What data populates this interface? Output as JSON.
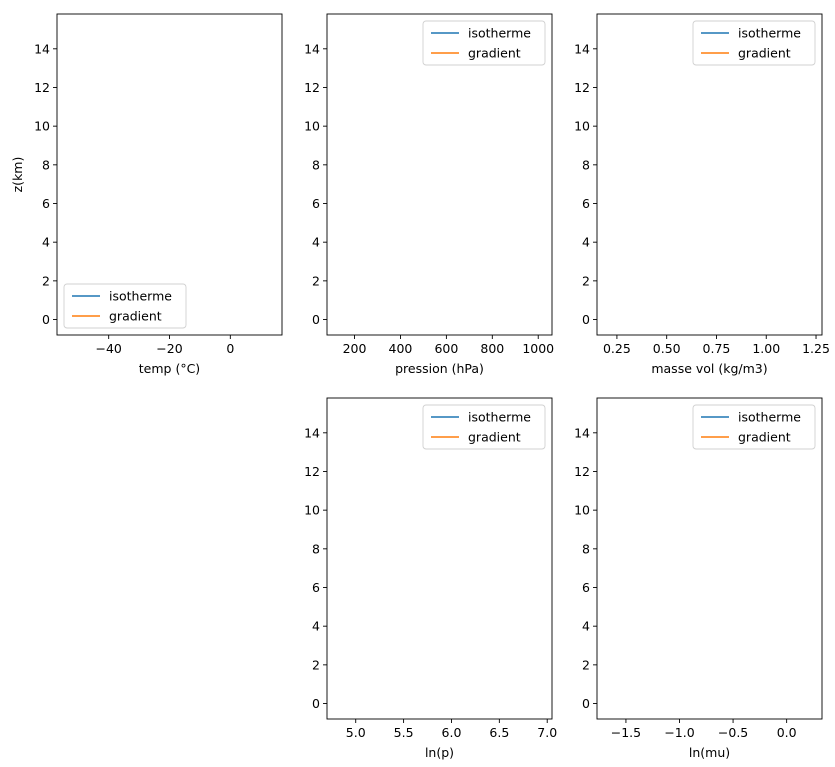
{
  "chart_data": [
    {
      "type": "line",
      "xlabel": "temp (°C)",
      "ylabel": "z(km)",
      "xlim": [
        -57,
        17
      ],
      "ylim": [
        -0.8,
        15.8
      ],
      "xticks": [
        -40,
        -20,
        0
      ],
      "xtick_labels": [
        "−40",
        "−20",
        "0"
      ],
      "yticks": [
        0,
        2,
        4,
        6,
        8,
        10,
        12,
        14
      ],
      "ytick_labels": [
        "0",
        "2",
        "4",
        "6",
        "8",
        "10",
        "12",
        "14"
      ],
      "legend": {
        "location": "lower-left",
        "entries": [
          "isotherme",
          "gradient"
        ]
      },
      "series": [
        {
          "name": "isotherme",
          "color": "#1f77b4",
          "x": [],
          "y": []
        },
        {
          "name": "gradient",
          "color": "#ff7f0e",
          "x": [],
          "y": []
        }
      ]
    },
    {
      "type": "line",
      "xlabel": "pression (hPa)",
      "ylabel": "",
      "xlim": [
        80,
        1060
      ],
      "ylim": [
        -0.8,
        15.8
      ],
      "xticks": [
        200,
        400,
        600,
        800,
        1000
      ],
      "xtick_labels": [
        "200",
        "400",
        "600",
        "800",
        "1000"
      ],
      "yticks": [
        0,
        2,
        4,
        6,
        8,
        10,
        12,
        14
      ],
      "ytick_labels": [
        "0",
        "2",
        "4",
        "6",
        "8",
        "10",
        "12",
        "14"
      ],
      "legend": {
        "location": "upper-right",
        "entries": [
          "isotherme",
          "gradient"
        ]
      },
      "series": [
        {
          "name": "isotherme",
          "color": "#1f77b4",
          "x": [],
          "y": []
        },
        {
          "name": "gradient",
          "color": "#ff7f0e",
          "x": [],
          "y": []
        }
      ]
    },
    {
      "type": "line",
      "xlabel": "masse vol (kg/m3)",
      "ylabel": "",
      "xlim": [
        0.15,
        1.28
      ],
      "ylim": [
        -0.8,
        15.8
      ],
      "xticks": [
        0.25,
        0.5,
        0.75,
        1.0,
        1.25
      ],
      "xtick_labels": [
        "0.25",
        "0.50",
        "0.75",
        "1.00",
        "1.25"
      ],
      "yticks": [
        0,
        2,
        4,
        6,
        8,
        10,
        12,
        14
      ],
      "ytick_labels": [
        "0",
        "2",
        "4",
        "6",
        "8",
        "10",
        "12",
        "14"
      ],
      "legend": {
        "location": "upper-right",
        "entries": [
          "isotherme",
          "gradient"
        ]
      },
      "series": [
        {
          "name": "isotherme",
          "color": "#1f77b4",
          "x": [],
          "y": []
        },
        {
          "name": "gradient",
          "color": "#ff7f0e",
          "x": [],
          "y": []
        }
      ]
    },
    {
      "type": "line",
      "xlabel": "ln(p)",
      "ylabel": "",
      "xlim": [
        4.7,
        7.05
      ],
      "ylim": [
        -0.8,
        15.8
      ],
      "xticks": [
        5.0,
        5.5,
        6.0,
        6.5,
        7.0
      ],
      "xtick_labels": [
        "5.0",
        "5.5",
        "6.0",
        "6.5",
        "7.0"
      ],
      "yticks": [
        0,
        2,
        4,
        6,
        8,
        10,
        12,
        14
      ],
      "ytick_labels": [
        "0",
        "2",
        "4",
        "6",
        "8",
        "10",
        "12",
        "14"
      ],
      "legend": {
        "location": "upper-right",
        "entries": [
          "isotherme",
          "gradient"
        ]
      },
      "series": [
        {
          "name": "isotherme",
          "color": "#1f77b4",
          "x": [],
          "y": []
        },
        {
          "name": "gradient",
          "color": "#ff7f0e",
          "x": [],
          "y": []
        }
      ]
    },
    {
      "type": "line",
      "xlabel": "ln(mu)",
      "ylabel": "",
      "xlim": [
        -1.77,
        0.33
      ],
      "ylim": [
        -0.8,
        15.8
      ],
      "xticks": [
        -1.5,
        -1.0,
        -0.5,
        0.0
      ],
      "xtick_labels": [
        "−1.5",
        "−1.0",
        "−0.5",
        "0.0"
      ],
      "yticks": [
        0,
        2,
        4,
        6,
        8,
        10,
        12,
        14
      ],
      "ytick_labels": [
        "0",
        "2",
        "4",
        "6",
        "8",
        "10",
        "12",
        "14"
      ],
      "legend": {
        "location": "upper-right",
        "entries": [
          "isotherme",
          "gradient"
        ]
      },
      "series": [
        {
          "name": "isotherme",
          "color": "#1f77b4",
          "x": [],
          "y": []
        },
        {
          "name": "gradient",
          "color": "#ff7f0e",
          "x": [],
          "y": []
        }
      ]
    }
  ]
}
